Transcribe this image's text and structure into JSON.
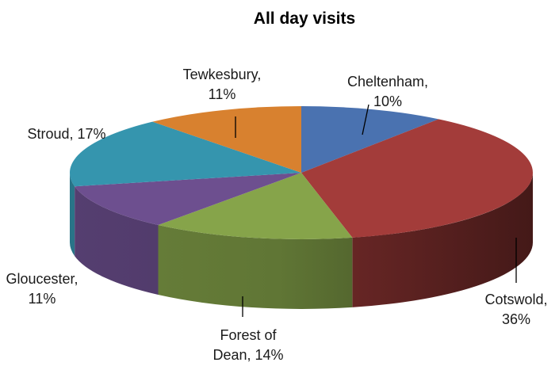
{
  "chart_data": {
    "type": "pie",
    "title": "All day visits",
    "categories": [
      "Cheltenham",
      "Cotswold",
      "Forest of Dean",
      "Gloucester",
      "Stroud",
      "Tewkesbury"
    ],
    "values": [
      10,
      36,
      14,
      11,
      17,
      11
    ],
    "data_labels": [
      [
        "Cheltenham,",
        "10%"
      ],
      [
        "Cotswold,",
        "36%"
      ],
      [
        "Forest of",
        "Dean, 14%"
      ],
      [
        "Gloucester,",
        "11%"
      ],
      [
        "Stroud, 17%"
      ],
      [
        "Tewkesbury,",
        "11%"
      ]
    ],
    "colors": [
      "#4a72b0",
      "#a33c3a",
      "#86a44a",
      "#6d4f8f",
      "#3595ae",
      "#d8812f"
    ],
    "three_d": true,
    "legend": "none"
  }
}
